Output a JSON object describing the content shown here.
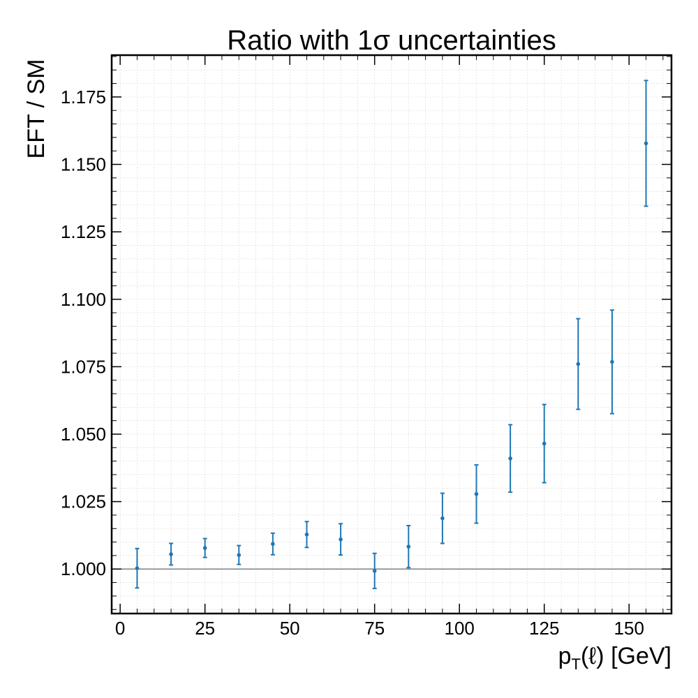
{
  "chart_data": {
    "type": "scatter",
    "title": "Ratio with 1σ uncertainties",
    "xlabel": "pT(ℓ) [GeV]",
    "ylabel": "EFT / SM",
    "xlim": [
      -2.5,
      162.5
    ],
    "ylim": [
      0.9835,
      1.1905
    ],
    "xticks": [
      0,
      25,
      50,
      75,
      100,
      125,
      150
    ],
    "xtick_labels": [
      "0",
      "25",
      "50",
      "75",
      "100",
      "125",
      "150"
    ],
    "yticks": [
      1.0,
      1.025,
      1.05,
      1.075,
      1.1,
      1.125,
      1.15,
      1.175
    ],
    "ytick_labels": [
      "1.000",
      "1.025",
      "1.050",
      "1.075",
      "1.100",
      "1.125",
      "1.150",
      "1.175"
    ],
    "reference_line": 1.0,
    "grid": true,
    "series": [
      {
        "x": [
          5,
          15,
          25,
          35,
          45,
          55,
          65,
          75,
          85,
          95,
          105,
          115,
          125,
          135,
          145,
          155
        ],
        "y": [
          1.0003,
          1.0055,
          1.0078,
          1.0052,
          1.0093,
          1.0128,
          1.011,
          0.9993,
          1.0083,
          1.0188,
          1.0278,
          1.041,
          1.0465,
          1.076,
          1.0768,
          1.1578
        ],
        "err": [
          0.0073,
          0.004,
          0.0035,
          0.0035,
          0.004,
          0.0048,
          0.0058,
          0.0065,
          0.0078,
          0.0093,
          0.0108,
          0.0125,
          0.0145,
          0.0168,
          0.0192,
          0.0233
        ]
      }
    ],
    "colors": {
      "points": "#1f77b4",
      "reference_line": "#808080",
      "grid": "#e0e0e0"
    }
  }
}
